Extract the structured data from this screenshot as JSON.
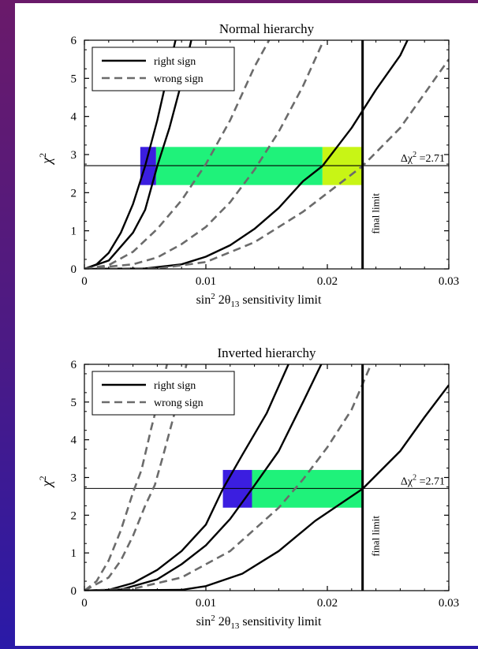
{
  "chart_data": [
    {
      "type": "line",
      "title": "Normal hierarchy",
      "xlabel_parts": {
        "pre": "sin",
        "sup": "2",
        "mid": " 2θ",
        "sub": "13",
        "post": "  sensitivity limit"
      },
      "ylabel": "χ",
      "ylabel_sup": "2",
      "xlim": [
        0,
        0.03
      ],
      "ylim": [
        0,
        6
      ],
      "xticks": [
        "0",
        "0.01",
        "0.02",
        "0.03"
      ],
      "yticks": [
        "0",
        "1",
        "2",
        "3",
        "4",
        "5",
        "6"
      ],
      "legend": {
        "placement": "top-left",
        "items": [
          {
            "label": "right sign",
            "style": "solid"
          },
          {
            "label": "wrong sign",
            "style": "dashed"
          }
        ]
      },
      "threshold": {
        "y": 2.71,
        "label": "Δχ",
        "label_sup": "2",
        "label_post": " =2.71"
      },
      "final_limit": {
        "x": 0.0229,
        "label": "final limit"
      },
      "bands": [
        {
          "x0": 0.0046,
          "x1": 0.0059,
          "y0": 2.2,
          "y1": 3.2,
          "color": "#3b1ee0"
        },
        {
          "x0": 0.0059,
          "x1": 0.0196,
          "y0": 2.2,
          "y1": 3.2,
          "color": "#1ff27a"
        },
        {
          "x0": 0.0196,
          "x1": 0.0229,
          "y0": 2.2,
          "y1": 3.2,
          "color": "#c8f515"
        }
      ],
      "series": [
        {
          "style": "solid",
          "points": [
            [
              0,
              0
            ],
            [
              0.001,
              0.12
            ],
            [
              0.002,
              0.42
            ],
            [
              0.003,
              0.95
            ],
            [
              0.004,
              1.7
            ],
            [
              0.005,
              2.7
            ],
            [
              0.006,
              3.9
            ],
            [
              0.007,
              5.3
            ],
            [
              0.0075,
              6.0
            ]
          ]
        },
        {
          "style": "solid",
          "points": [
            [
              0,
              0
            ],
            [
              0.002,
              0.22
            ],
            [
              0.004,
              0.95
            ],
            [
              0.005,
              1.55
            ],
            [
              0.006,
              2.7
            ],
            [
              0.007,
              3.7
            ],
            [
              0.008,
              4.9
            ],
            [
              0.0088,
              6.0
            ]
          ]
        },
        {
          "style": "dashed",
          "points": [
            [
              0,
              0
            ],
            [
              0.002,
              0.1
            ],
            [
              0.004,
              0.45
            ],
            [
              0.006,
              1.05
            ],
            [
              0.008,
              1.8
            ],
            [
              0.01,
              2.75
            ],
            [
              0.012,
              3.9
            ],
            [
              0.014,
              5.3
            ],
            [
              0.0152,
              6.0
            ]
          ]
        },
        {
          "style": "dashed",
          "points": [
            [
              0,
              0
            ],
            [
              0.004,
              0.12
            ],
            [
              0.006,
              0.3
            ],
            [
              0.008,
              0.65
            ],
            [
              0.01,
              1.1
            ],
            [
              0.012,
              1.75
            ],
            [
              0.014,
              2.6
            ],
            [
              0.016,
              3.6
            ],
            [
              0.018,
              4.8
            ],
            [
              0.0197,
              6.0
            ]
          ]
        },
        {
          "style": "solid",
          "points": [
            [
              0,
              0
            ],
            [
              0.005,
              0.01
            ],
            [
              0.008,
              0.12
            ],
            [
              0.01,
              0.32
            ],
            [
              0.012,
              0.62
            ],
            [
              0.014,
              1.05
            ],
            [
              0.016,
              1.6
            ],
            [
              0.018,
              2.3
            ],
            [
              0.0196,
              2.7
            ],
            [
              0.022,
              3.7
            ],
            [
              0.024,
              4.7
            ],
            [
              0.026,
              5.6
            ],
            [
              0.0266,
              6.0
            ]
          ]
        },
        {
          "style": "dashed",
          "points": [
            [
              0,
              0
            ],
            [
              0.006,
              0.01
            ],
            [
              0.01,
              0.18
            ],
            [
              0.014,
              0.7
            ],
            [
              0.018,
              1.5
            ],
            [
              0.0229,
              2.7
            ],
            [
              0.026,
              3.7
            ],
            [
              0.028,
              4.6
            ],
            [
              0.03,
              5.5
            ]
          ]
        }
      ]
    },
    {
      "type": "line",
      "title": "Inverted hierarchy",
      "xlabel_parts": {
        "pre": "sin",
        "sup": "2",
        "mid": " 2θ",
        "sub": "13",
        "post": "  sensitivity limit"
      },
      "ylabel": "χ",
      "ylabel_sup": "2",
      "xlim": [
        0,
        0.03
      ],
      "ylim": [
        0,
        6
      ],
      "xticks": [
        "0",
        "0.01",
        "0.02",
        "0.03"
      ],
      "yticks": [
        "0",
        "1",
        "2",
        "3",
        "4",
        "5",
        "6"
      ],
      "legend": {
        "placement": "top-left",
        "items": [
          {
            "label": "right sign",
            "style": "solid"
          },
          {
            "label": "wrong sign",
            "style": "dashed"
          }
        ]
      },
      "threshold": {
        "y": 2.71,
        "label": "Δχ",
        "label_sup": "2",
        "label_post": " =2.71"
      },
      "final_limit": {
        "x": 0.0229,
        "label": "final limit"
      },
      "bands": [
        {
          "x0": 0.0114,
          "x1": 0.0138,
          "y0": 2.2,
          "y1": 3.2,
          "color": "#3b1ee0"
        },
        {
          "x0": 0.0138,
          "x1": 0.0229,
          "y0": 2.2,
          "y1": 3.2,
          "color": "#1ff27a"
        }
      ],
      "series": [
        {
          "style": "dashed",
          "points": [
            [
              0,
              0
            ],
            [
              0.001,
              0.25
            ],
            [
              0.002,
              0.8
            ],
            [
              0.003,
              1.6
            ],
            [
              0.004,
              2.6
            ],
            [
              0.0047,
              3.2
            ],
            [
              0.0055,
              4.3
            ],
            [
              0.0063,
              5.3
            ],
            [
              0.0068,
              6.0
            ]
          ]
        },
        {
          "style": "dashed",
          "points": [
            [
              0,
              0
            ],
            [
              0.002,
              0.35
            ],
            [
              0.003,
              0.8
            ],
            [
              0.004,
              1.45
            ],
            [
              0.005,
              2.25
            ],
            [
              0.0058,
              2.8
            ],
            [
              0.0065,
              3.6
            ],
            [
              0.0075,
              4.8
            ],
            [
              0.0084,
              6.0
            ]
          ]
        },
        {
          "style": "solid",
          "points": [
            [
              0,
              0
            ],
            [
              0.002,
              0.02
            ],
            [
              0.004,
              0.2
            ],
            [
              0.006,
              0.55
            ],
            [
              0.008,
              1.05
            ],
            [
              0.01,
              1.75
            ],
            [
              0.0114,
              2.7
            ],
            [
              0.013,
              3.6
            ],
            [
              0.015,
              4.7
            ],
            [
              0.0168,
              6.0
            ]
          ]
        },
        {
          "style": "solid",
          "points": [
            [
              0,
              0
            ],
            [
              0.003,
              0.03
            ],
            [
              0.006,
              0.3
            ],
            [
              0.008,
              0.7
            ],
            [
              0.01,
              1.2
            ],
            [
              0.012,
              1.9
            ],
            [
              0.0138,
              2.7
            ],
            [
              0.016,
              3.7
            ],
            [
              0.018,
              5.0
            ],
            [
              0.0195,
              6.0
            ]
          ]
        },
        {
          "style": "dashed",
          "points": [
            [
              0,
              0
            ],
            [
              0.004,
              0.05
            ],
            [
              0.008,
              0.35
            ],
            [
              0.012,
              1.05
            ],
            [
              0.016,
              2.2
            ],
            [
              0.018,
              2.95
            ],
            [
              0.02,
              3.8
            ],
            [
              0.022,
              4.8
            ],
            [
              0.0236,
              6.0
            ]
          ]
        },
        {
          "style": "solid",
          "points": [
            [
              0,
              0
            ],
            [
              0.008,
              0.02
            ],
            [
              0.01,
              0.12
            ],
            [
              0.013,
              0.45
            ],
            [
              0.016,
              1.05
            ],
            [
              0.019,
              1.85
            ],
            [
              0.0229,
              2.7
            ],
            [
              0.026,
              3.7
            ],
            [
              0.028,
              4.6
            ],
            [
              0.03,
              5.45
            ]
          ]
        }
      ]
    }
  ]
}
